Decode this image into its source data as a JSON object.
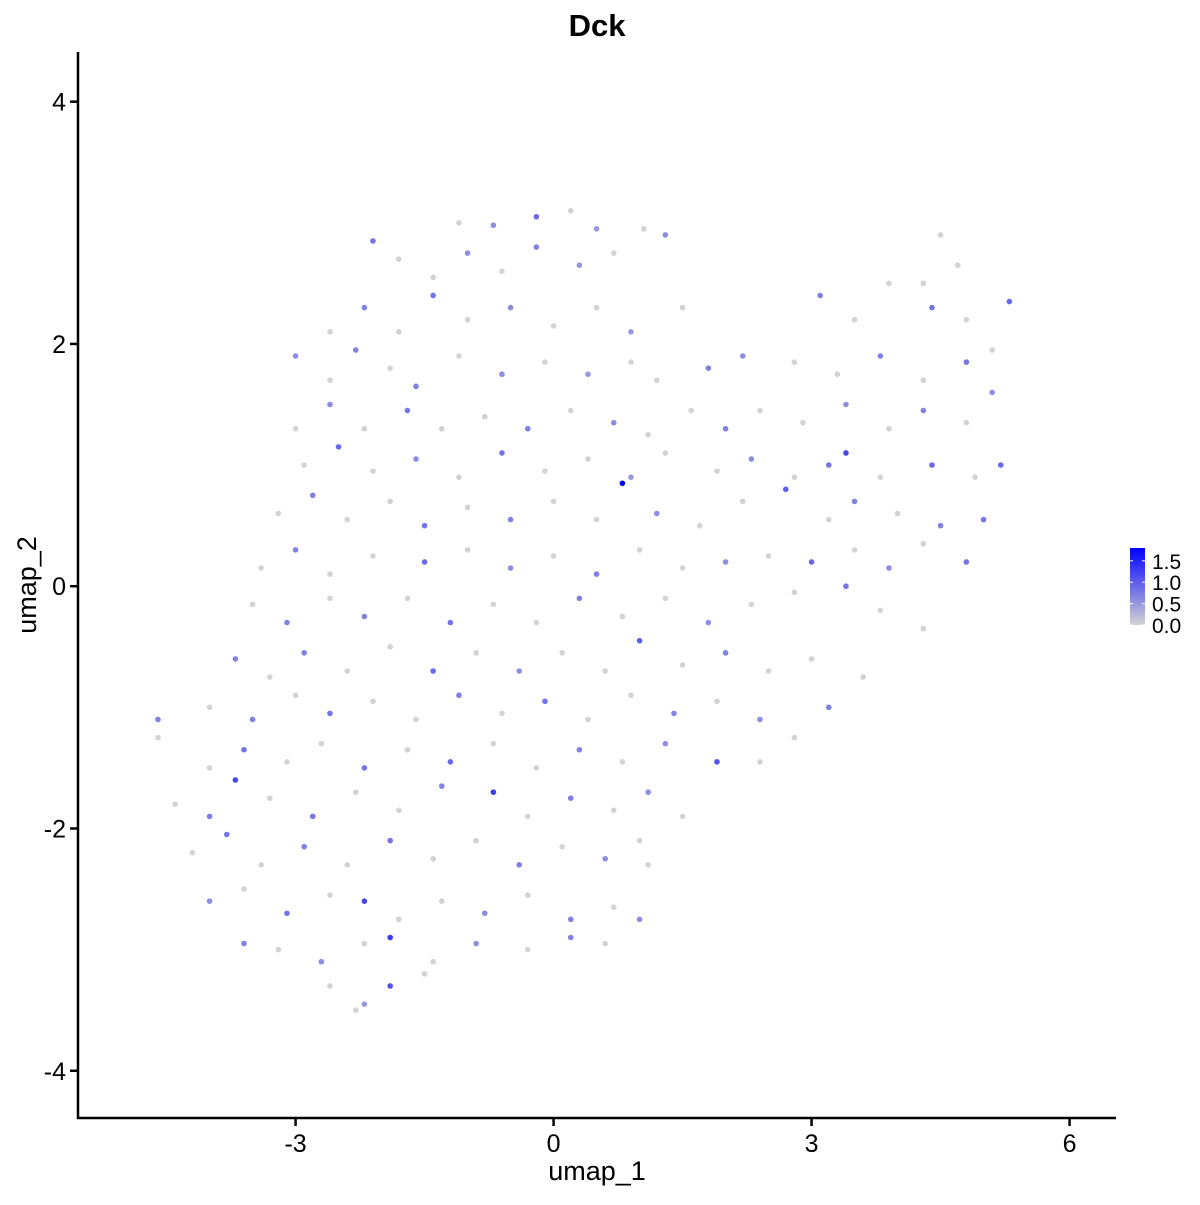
{
  "chart_data": {
    "type": "scatter",
    "title": "Dck",
    "xlabel": "umap_1",
    "ylabel": "umap_2",
    "xlim": [
      -5.53,
      6.54
    ],
    "ylim": [
      -4.39,
      4.41
    ],
    "xticks": [
      -3,
      0,
      3,
      6
    ],
    "xtick_labels": [
      "-3",
      "0",
      "3",
      "6"
    ],
    "yticks": [
      -4,
      -2,
      0,
      2,
      4
    ],
    "ytick_labels": [
      "-4",
      "-2",
      "0",
      "2",
      "4"
    ],
    "grid": false,
    "legend": {
      "placement": "right",
      "type": "colorbar",
      "range": [
        0,
        1.8
      ],
      "ticks": [
        1.5,
        1.0,
        0.5,
        0.0
      ],
      "tick_labels": [
        "1.5",
        "1.0",
        "0.5",
        "0.0"
      ],
      "low_color": "#d3d3d3",
      "high_color": "#0000ff"
    },
    "point_fields": [
      "umap_1",
      "umap_2",
      "expression"
    ],
    "points": [
      [
        -1.1,
        3.0,
        0
      ],
      [
        -0.7,
        2.98,
        0.6
      ],
      [
        -0.2,
        3.05,
        0.9
      ],
      [
        0.2,
        3.1,
        0
      ],
      [
        0.5,
        2.95,
        0.5
      ],
      [
        1.05,
        2.95,
        0
      ],
      [
        -2.1,
        2.85,
        0.8
      ],
      [
        -1.8,
        2.7,
        0
      ],
      [
        -1.4,
        2.55,
        0
      ],
      [
        -1.0,
        2.75,
        0.6
      ],
      [
        -0.6,
        2.6,
        0
      ],
      [
        -0.2,
        2.8,
        0.7
      ],
      [
        0.3,
        2.65,
        0.5
      ],
      [
        0.7,
        2.75,
        0
      ],
      [
        1.3,
        2.9,
        0.6
      ],
      [
        4.3,
        2.5,
        0
      ],
      [
        4.5,
        2.9,
        0
      ],
      [
        4.7,
        2.65,
        0
      ],
      [
        -2.6,
        2.1,
        0
      ],
      [
        -2.2,
        2.3,
        0.7
      ],
      [
        -1.8,
        2.1,
        0
      ],
      [
        -1.4,
        2.4,
        0.8
      ],
      [
        -1.0,
        2.2,
        0
      ],
      [
        -0.5,
        2.3,
        0.6
      ],
      [
        0,
        2.15,
        0
      ],
      [
        0.5,
        2.3,
        0
      ],
      [
        0.9,
        2.1,
        0.5
      ],
      [
        1.5,
        2.3,
        0
      ],
      [
        3.1,
        2.4,
        0.7
      ],
      [
        3.5,
        2.2,
        0
      ],
      [
        3.9,
        2.5,
        0
      ],
      [
        4.4,
        2.3,
        0.8
      ],
      [
        4.8,
        2.2,
        0
      ],
      [
        5.3,
        2.35,
        0.9
      ],
      [
        -3.0,
        1.9,
        0.6
      ],
      [
        -2.6,
        1.7,
        0
      ],
      [
        -2.3,
        1.95,
        0.7
      ],
      [
        -1.9,
        1.8,
        0
      ],
      [
        -1.6,
        1.65,
        0.7
      ],
      [
        -1.1,
        1.9,
        0
      ],
      [
        -0.6,
        1.75,
        0.6
      ],
      [
        -0.1,
        1.85,
        0
      ],
      [
        0.4,
        1.75,
        0.5
      ],
      [
        0.9,
        1.85,
        0
      ],
      [
        1.2,
        1.7,
        0
      ],
      [
        1.8,
        1.8,
        0.7
      ],
      [
        2.2,
        1.9,
        0.6
      ],
      [
        2.8,
        1.85,
        0
      ],
      [
        3.3,
        1.75,
        0
      ],
      [
        3.8,
        1.9,
        0.7
      ],
      [
        4.3,
        1.7,
        0
      ],
      [
        4.8,
        1.85,
        0.8
      ],
      [
        5.1,
        1.95,
        0
      ],
      [
        -3.0,
        1.3,
        0
      ],
      [
        -2.6,
        1.5,
        0.6
      ],
      [
        -2.2,
        1.3,
        0
      ],
      [
        -1.7,
        1.45,
        0.8
      ],
      [
        -1.3,
        1.3,
        0
      ],
      [
        -0.8,
        1.4,
        0
      ],
      [
        -0.3,
        1.3,
        0.7
      ],
      [
        0.2,
        1.45,
        0
      ],
      [
        0.7,
        1.35,
        0.6
      ],
      [
        1.1,
        1.25,
        0
      ],
      [
        1.6,
        1.45,
        0
      ],
      [
        2.0,
        1.3,
        0.7
      ],
      [
        2.4,
        1.45,
        0
      ],
      [
        2.9,
        1.35,
        0
      ],
      [
        3.4,
        1.5,
        0.6
      ],
      [
        3.9,
        1.3,
        0
      ],
      [
        4.3,
        1.45,
        0.7
      ],
      [
        4.8,
        1.35,
        0
      ],
      [
        5.1,
        1.6,
        0.6
      ],
      [
        -2.9,
        1.0,
        0
      ],
      [
        -2.5,
        1.15,
        0.9
      ],
      [
        -2.1,
        0.95,
        0
      ],
      [
        -1.6,
        1.05,
        0.6
      ],
      [
        -1.1,
        0.9,
        0
      ],
      [
        -0.6,
        1.1,
        0.8
      ],
      [
        -0.1,
        0.95,
        0
      ],
      [
        0.4,
        1.05,
        0
      ],
      [
        0.9,
        0.9,
        0.5
      ],
      [
        1.3,
        1.1,
        0
      ],
      [
        1.9,
        0.95,
        0
      ],
      [
        2.3,
        1.05,
        0.6
      ],
      [
        2.8,
        0.9,
        0
      ],
      [
        3.2,
        1.0,
        0.8
      ],
      [
        3.4,
        1.1,
        1.2
      ],
      [
        3.8,
        0.9,
        0
      ],
      [
        4.4,
        1.0,
        0.9
      ],
      [
        4.9,
        0.9,
        0
      ],
      [
        5.2,
        1.0,
        0.9
      ],
      [
        -3.2,
        0.6,
        0
      ],
      [
        -2.8,
        0.75,
        0.7
      ],
      [
        -2.4,
        0.55,
        0
      ],
      [
        -1.9,
        0.7,
        0
      ],
      [
        -1.5,
        0.5,
        0.8
      ],
      [
        -1.0,
        0.65,
        0
      ],
      [
        -0.5,
        0.55,
        0.7
      ],
      [
        0,
        0.7,
        0
      ],
      [
        0.5,
        0.55,
        0
      ],
      [
        0.8,
        0.85,
        1.8
      ],
      [
        1.2,
        0.6,
        0.6
      ],
      [
        1.7,
        0.5,
        0
      ],
      [
        2.2,
        0.7,
        0
      ],
      [
        2.7,
        0.8,
        1.0
      ],
      [
        3.2,
        0.55,
        0
      ],
      [
        3.5,
        0.7,
        0.7
      ],
      [
        4.0,
        0.6,
        0
      ],
      [
        4.5,
        0.5,
        0.7
      ],
      [
        5.0,
        0.55,
        0.8
      ],
      [
        -3.4,
        0.15,
        0
      ],
      [
        -3.0,
        0.3,
        0.7
      ],
      [
        -2.6,
        0.1,
        0
      ],
      [
        -2.1,
        0.25,
        0
      ],
      [
        -1.5,
        0.2,
        0.9
      ],
      [
        -1.0,
        0.3,
        0
      ],
      [
        -0.5,
        0.15,
        0.6
      ],
      [
        0,
        0.25,
        0
      ],
      [
        0.5,
        0.1,
        0.7
      ],
      [
        1.0,
        0.3,
        0
      ],
      [
        1.5,
        0.15,
        0
      ],
      [
        2.0,
        0.2,
        0.6
      ],
      [
        2.5,
        0.25,
        0
      ],
      [
        3.0,
        0.2,
        0.9
      ],
      [
        3.5,
        0.3,
        0
      ],
      [
        3.9,
        0.15,
        0.6
      ],
      [
        4.3,
        0.35,
        0
      ],
      [
        4.8,
        0.2,
        0.8
      ],
      [
        -3.5,
        -0.15,
        0
      ],
      [
        -3.1,
        -0.3,
        0.7
      ],
      [
        -2.6,
        -0.1,
        0
      ],
      [
        -2.2,
        -0.25,
        0.7
      ],
      [
        -1.7,
        -0.1,
        0
      ],
      [
        -1.2,
        -0.3,
        0.8
      ],
      [
        -0.7,
        -0.15,
        0
      ],
      [
        -0.2,
        -0.3,
        0
      ],
      [
        0.3,
        -0.1,
        0.7
      ],
      [
        0.8,
        -0.25,
        0
      ],
      [
        1.3,
        -0.1,
        0
      ],
      [
        1.8,
        -0.3,
        0.6
      ],
      [
        2.3,
        -0.15,
        0
      ],
      [
        2.8,
        -0.05,
        0
      ],
      [
        3.4,
        0,
        0.8
      ],
      [
        3.8,
        -0.2,
        0
      ],
      [
        4.3,
        -0.35,
        0
      ],
      [
        -3.7,
        -0.6,
        0.7
      ],
      [
        -3.3,
        -0.75,
        0
      ],
      [
        -2.9,
        -0.55,
        0.7
      ],
      [
        -2.4,
        -0.7,
        0
      ],
      [
        -1.9,
        -0.5,
        0
      ],
      [
        -1.4,
        -0.7,
        0.9
      ],
      [
        -0.9,
        -0.55,
        0
      ],
      [
        -0.4,
        -0.7,
        0.6
      ],
      [
        0.1,
        -0.55,
        0
      ],
      [
        0.6,
        -0.7,
        0
      ],
      [
        1.0,
        -0.45,
        1.0
      ],
      [
        1.5,
        -0.65,
        0
      ],
      [
        2.0,
        -0.55,
        0.7
      ],
      [
        2.5,
        -0.7,
        0
      ],
      [
        3.0,
        -0.6,
        0
      ],
      [
        3.6,
        -0.75,
        0
      ],
      [
        -4.0,
        -1.0,
        0
      ],
      [
        -3.5,
        -1.1,
        0.7
      ],
      [
        -3.0,
        -0.9,
        0
      ],
      [
        -2.6,
        -1.05,
        0.8
      ],
      [
        -2.1,
        -0.95,
        0
      ],
      [
        -1.6,
        -1.1,
        0
      ],
      [
        -1.1,
        -0.9,
        0.7
      ],
      [
        -0.6,
        -1.05,
        0
      ],
      [
        -0.1,
        -0.95,
        0.8
      ],
      [
        0.4,
        -1.1,
        0
      ],
      [
        0.9,
        -0.9,
        0
      ],
      [
        1.4,
        -1.05,
        0.7
      ],
      [
        1.9,
        -0.95,
        0
      ],
      [
        2.4,
        -1.1,
        0.6
      ],
      [
        2.8,
        -1.25,
        0
      ],
      [
        3.2,
        -1.0,
        0.7
      ],
      [
        -4.6,
        -1.25,
        0
      ],
      [
        -4.6,
        -1.1,
        0.7
      ],
      [
        -4.0,
        -1.5,
        0
      ],
      [
        -3.6,
        -1.35,
        0.8
      ],
      [
        -3.1,
        -1.45,
        0
      ],
      [
        -2.7,
        -1.3,
        0
      ],
      [
        -2.2,
        -1.5,
        0.8
      ],
      [
        -1.7,
        -1.35,
        0
      ],
      [
        -1.2,
        -1.45,
        0.9
      ],
      [
        -0.7,
        -1.3,
        0
      ],
      [
        -0.2,
        -1.5,
        0
      ],
      [
        0.3,
        -1.35,
        0.7
      ],
      [
        0.8,
        -1.45,
        0
      ],
      [
        1.3,
        -1.3,
        0.6
      ],
      [
        1.9,
        -1.45,
        1.1
      ],
      [
        2.4,
        -1.45,
        0
      ],
      [
        -4.4,
        -1.8,
        0
      ],
      [
        -4.0,
        -1.9,
        0.7
      ],
      [
        -3.7,
        -1.6,
        1.2
      ],
      [
        -3.3,
        -1.75,
        0
      ],
      [
        -2.8,
        -1.9,
        0.8
      ],
      [
        -2.3,
        -1.7,
        0
      ],
      [
        -1.8,
        -1.85,
        0
      ],
      [
        -1.3,
        -1.65,
        0.7
      ],
      [
        -0.7,
        -1.7,
        1.3
      ],
      [
        -0.3,
        -1.9,
        0
      ],
      [
        0.2,
        -1.75,
        0.7
      ],
      [
        0.7,
        -1.85,
        0
      ],
      [
        1.1,
        -1.7,
        0.6
      ],
      [
        1.5,
        -1.9,
        0
      ],
      [
        -4.2,
        -2.2,
        0
      ],
      [
        -3.8,
        -2.05,
        0.8
      ],
      [
        -3.4,
        -2.3,
        0
      ],
      [
        -2.9,
        -2.15,
        0.7
      ],
      [
        -2.4,
        -2.3,
        0
      ],
      [
        -1.9,
        -2.1,
        0.8
      ],
      [
        -1.4,
        -2.25,
        0
      ],
      [
        -0.9,
        -2.1,
        0
      ],
      [
        -0.4,
        -2.3,
        0.7
      ],
      [
        0.1,
        -2.15,
        0
      ],
      [
        0.6,
        -2.25,
        0.6
      ],
      [
        1.0,
        -2.1,
        0
      ],
      [
        1.1,
        -2.3,
        0
      ],
      [
        -4.0,
        -2.6,
        0.6
      ],
      [
        -3.6,
        -2.5,
        0
      ],
      [
        -3.1,
        -2.7,
        0.8
      ],
      [
        -2.6,
        -2.55,
        0
      ],
      [
        -2.2,
        -2.6,
        1.2
      ],
      [
        -1.8,
        -2.75,
        0
      ],
      [
        -1.3,
        -2.6,
        0
      ],
      [
        -0.8,
        -2.7,
        0.6
      ],
      [
        -0.3,
        -2.55,
        0
      ],
      [
        0.2,
        -2.75,
        0.7
      ],
      [
        0.7,
        -2.65,
        0
      ],
      [
        -3.6,
        -2.95,
        0.7
      ],
      [
        -3.2,
        -3.0,
        0
      ],
      [
        -2.7,
        -3.1,
        0.6
      ],
      [
        -2.2,
        -2.95,
        0
      ],
      [
        -1.9,
        -2.9,
        1.3
      ],
      [
        -1.4,
        -3.1,
        0
      ],
      [
        -0.9,
        -2.95,
        0.6
      ],
      [
        -0.3,
        -3.0,
        0
      ],
      [
        0.2,
        -2.9,
        0.7
      ],
      [
        0.6,
        -2.95,
        0
      ],
      [
        1.0,
        -2.75,
        0.6
      ],
      [
        -2.6,
        -3.3,
        0
      ],
      [
        -2.3,
        -3.5,
        0
      ],
      [
        -2.2,
        -3.45,
        0.5
      ],
      [
        -1.9,
        -3.3,
        1.1
      ],
      [
        -1.5,
        -3.2,
        0
      ]
    ]
  }
}
